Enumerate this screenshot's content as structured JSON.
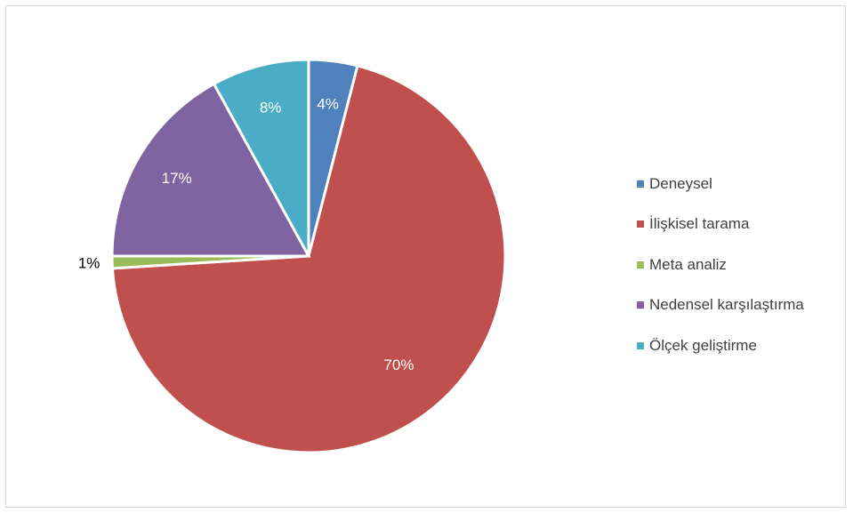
{
  "chart_data": {
    "type": "pie",
    "title": "",
    "categories": [
      "Deneysel",
      "İlişkisel tarama",
      "Meta analiz",
      "Nedensel karşılaştırma",
      "Ölçek geliştirme"
    ],
    "values": [
      4,
      70,
      1,
      17,
      8
    ],
    "data_labels": [
      "4%",
      "70%",
      "1%",
      "17%",
      "8%"
    ],
    "colors": [
      "#4f81bd",
      "#c0504d",
      "#9bbb59",
      "#8064a2",
      "#4bacc6"
    ],
    "start_angle_deg": 0,
    "direction": "clockwise",
    "legend": "right"
  }
}
